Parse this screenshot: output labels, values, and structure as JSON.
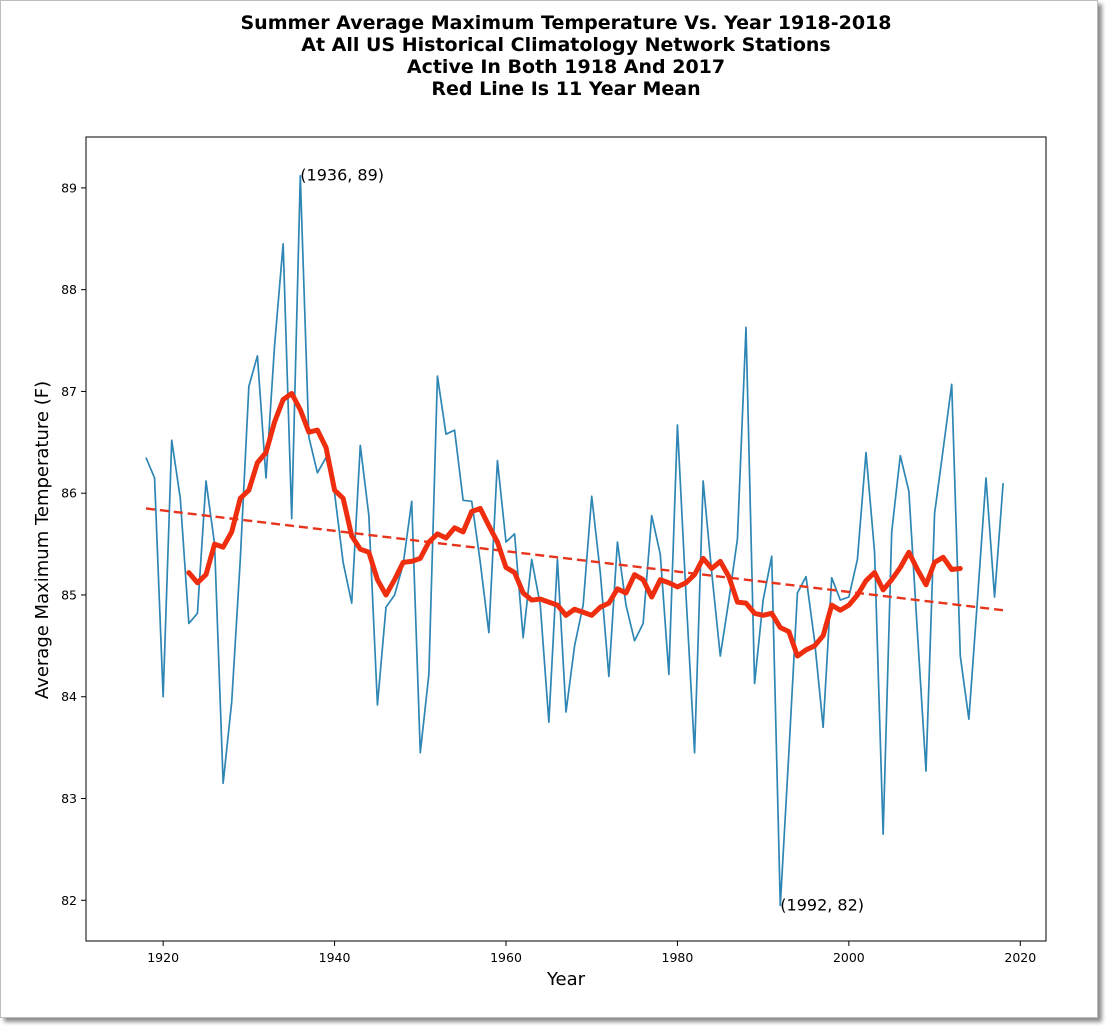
{
  "chart_data": {
    "type": "line",
    "title_lines": [
      "Summer Average Maximum Temperature Vs. Year 1918-2018",
      "At All US Historical Climatology Network Stations",
      "Active In Both 1918 And 2017",
      "Red Line Is 11 Year Mean"
    ],
    "xlabel": "Year",
    "ylabel": "Average Maximum Temperature (F)",
    "xlim": [
      1911,
      2023
    ],
    "ylim": [
      81.6,
      89.5
    ],
    "x_ticks": [
      1920,
      1940,
      1960,
      1980,
      2000,
      2020
    ],
    "y_ticks": [
      82,
      83,
      84,
      85,
      86,
      87,
      88,
      89
    ],
    "grid": false,
    "colors": {
      "annual": "#2e86b5",
      "mean": "#ee2e0e",
      "trend": "#e8341c"
    },
    "annual": {
      "x": [
        1918,
        1919,
        1920,
        1921,
        1922,
        1923,
        1924,
        1925,
        1926,
        1927,
        1928,
        1929,
        1930,
        1931,
        1932,
        1933,
        1934,
        1935,
        1936,
        1937,
        1938,
        1939,
        1940,
        1941,
        1942,
        1943,
        1944,
        1945,
        1946,
        1947,
        1948,
        1949,
        1950,
        1951,
        1952,
        1953,
        1954,
        1955,
        1956,
        1957,
        1958,
        1959,
        1960,
        1961,
        1962,
        1963,
        1964,
        1965,
        1966,
        1967,
        1968,
        1969,
        1970,
        1971,
        1972,
        1973,
        1974,
        1975,
        1976,
        1977,
        1978,
        1979,
        1980,
        1981,
        1982,
        1983,
        1984,
        1985,
        1986,
        1987,
        1988,
        1989,
        1990,
        1991,
        1992,
        1993,
        1994,
        1995,
        1996,
        1997,
        1998,
        1999,
        2000,
        2001,
        2002,
        2003,
        2004,
        2005,
        2006,
        2007,
        2008,
        2009,
        2010,
        2011,
        2012,
        2013,
        2014,
        2015,
        2016,
        2017,
        2018
      ],
      "y": [
        86.35,
        86.15,
        84.0,
        86.52,
        85.95,
        84.72,
        84.82,
        86.12,
        85.5,
        83.15,
        83.95,
        85.35,
        87.05,
        87.35,
        86.15,
        87.45,
        88.45,
        85.75,
        89.12,
        86.55,
        86.2,
        86.35,
        86.0,
        85.32,
        84.92,
        86.47,
        85.78,
        83.92,
        84.88,
        85.0,
        85.3,
        85.92,
        83.45,
        84.22,
        87.15,
        86.58,
        86.62,
        85.93,
        85.92,
        85.32,
        84.63,
        86.32,
        85.52,
        85.6,
        84.58,
        85.35,
        84.9,
        83.75,
        85.35,
        83.85,
        84.5,
        84.9,
        85.97,
        85.22,
        84.2,
        85.52,
        84.9,
        84.55,
        84.72,
        85.78,
        85.4,
        84.22,
        86.67,
        85.0,
        83.45,
        86.12,
        85.22,
        84.4,
        84.95,
        85.55,
        87.63,
        84.13,
        84.95,
        85.38,
        81.95,
        83.45,
        85.02,
        85.18,
        84.55,
        83.7,
        85.17,
        84.95,
        84.98,
        85.35,
        86.4,
        85.42,
        82.65,
        85.62,
        86.37,
        86.02,
        84.63,
        83.27,
        85.8,
        86.43,
        87.07,
        84.4,
        83.78,
        84.95,
        86.15,
        84.98,
        86.1
      ]
    },
    "running_mean_11yr": {
      "x": [
        1923,
        1924,
        1925,
        1926,
        1927,
        1928,
        1929,
        1930,
        1931,
        1932,
        1933,
        1934,
        1935,
        1936,
        1937,
        1938,
        1939,
        1940,
        1941,
        1942,
        1943,
        1944,
        1945,
        1946,
        1947,
        1948,
        1949,
        1950,
        1951,
        1952,
        1953,
        1954,
        1955,
        1956,
        1957,
        1958,
        1959,
        1960,
        1961,
        1962,
        1963,
        1964,
        1965,
        1966,
        1967,
        1968,
        1969,
        1970,
        1971,
        1972,
        1973,
        1974,
        1975,
        1976,
        1977,
        1978,
        1979,
        1980,
        1981,
        1982,
        1983,
        1984,
        1985,
        1986,
        1987,
        1988,
        1989,
        1990,
        1991,
        1992,
        1993,
        1994,
        1995,
        1996,
        1997,
        1998,
        1999,
        2000,
        2001,
        2002,
        2003,
        2004,
        2005,
        2006,
        2007,
        2008,
        2009,
        2010,
        2011,
        2012,
        2013
      ],
      "y": [
        85.22,
        85.12,
        85.2,
        85.5,
        85.47,
        85.62,
        85.95,
        86.03,
        86.3,
        86.4,
        86.7,
        86.92,
        86.98,
        86.82,
        86.6,
        86.62,
        86.45,
        86.03,
        85.95,
        85.58,
        85.45,
        85.42,
        85.15,
        85.0,
        85.15,
        85.32,
        85.33,
        85.36,
        85.52,
        85.6,
        85.56,
        85.66,
        85.62,
        85.82,
        85.85,
        85.68,
        85.52,
        85.27,
        85.22,
        85.02,
        84.95,
        84.96,
        84.93,
        84.9,
        84.8,
        84.86,
        84.83,
        84.8,
        84.88,
        84.92,
        85.06,
        85.02,
        85.2,
        85.15,
        84.98,
        85.15,
        85.12,
        85.08,
        85.12,
        85.2,
        85.36,
        85.26,
        85.33,
        85.18,
        84.93,
        84.92,
        84.82,
        84.8,
        84.82,
        84.68,
        84.64,
        84.4,
        84.46,
        84.5,
        84.6,
        84.9,
        84.85,
        84.9,
        85.0,
        85.14,
        85.22,
        85.05,
        85.15,
        85.27,
        85.42,
        85.25,
        85.1,
        85.32,
        85.37,
        85.25,
        85.26
      ]
    },
    "trend": {
      "x": [
        1918,
        2018
      ],
      "y": [
        85.85,
        84.85
      ]
    },
    "annotations": [
      {
        "x": 1936,
        "y": 89.12,
        "text": "(1936, 89)"
      },
      {
        "x": 1992,
        "y": 81.95,
        "text": "(1992, 82)"
      }
    ]
  }
}
